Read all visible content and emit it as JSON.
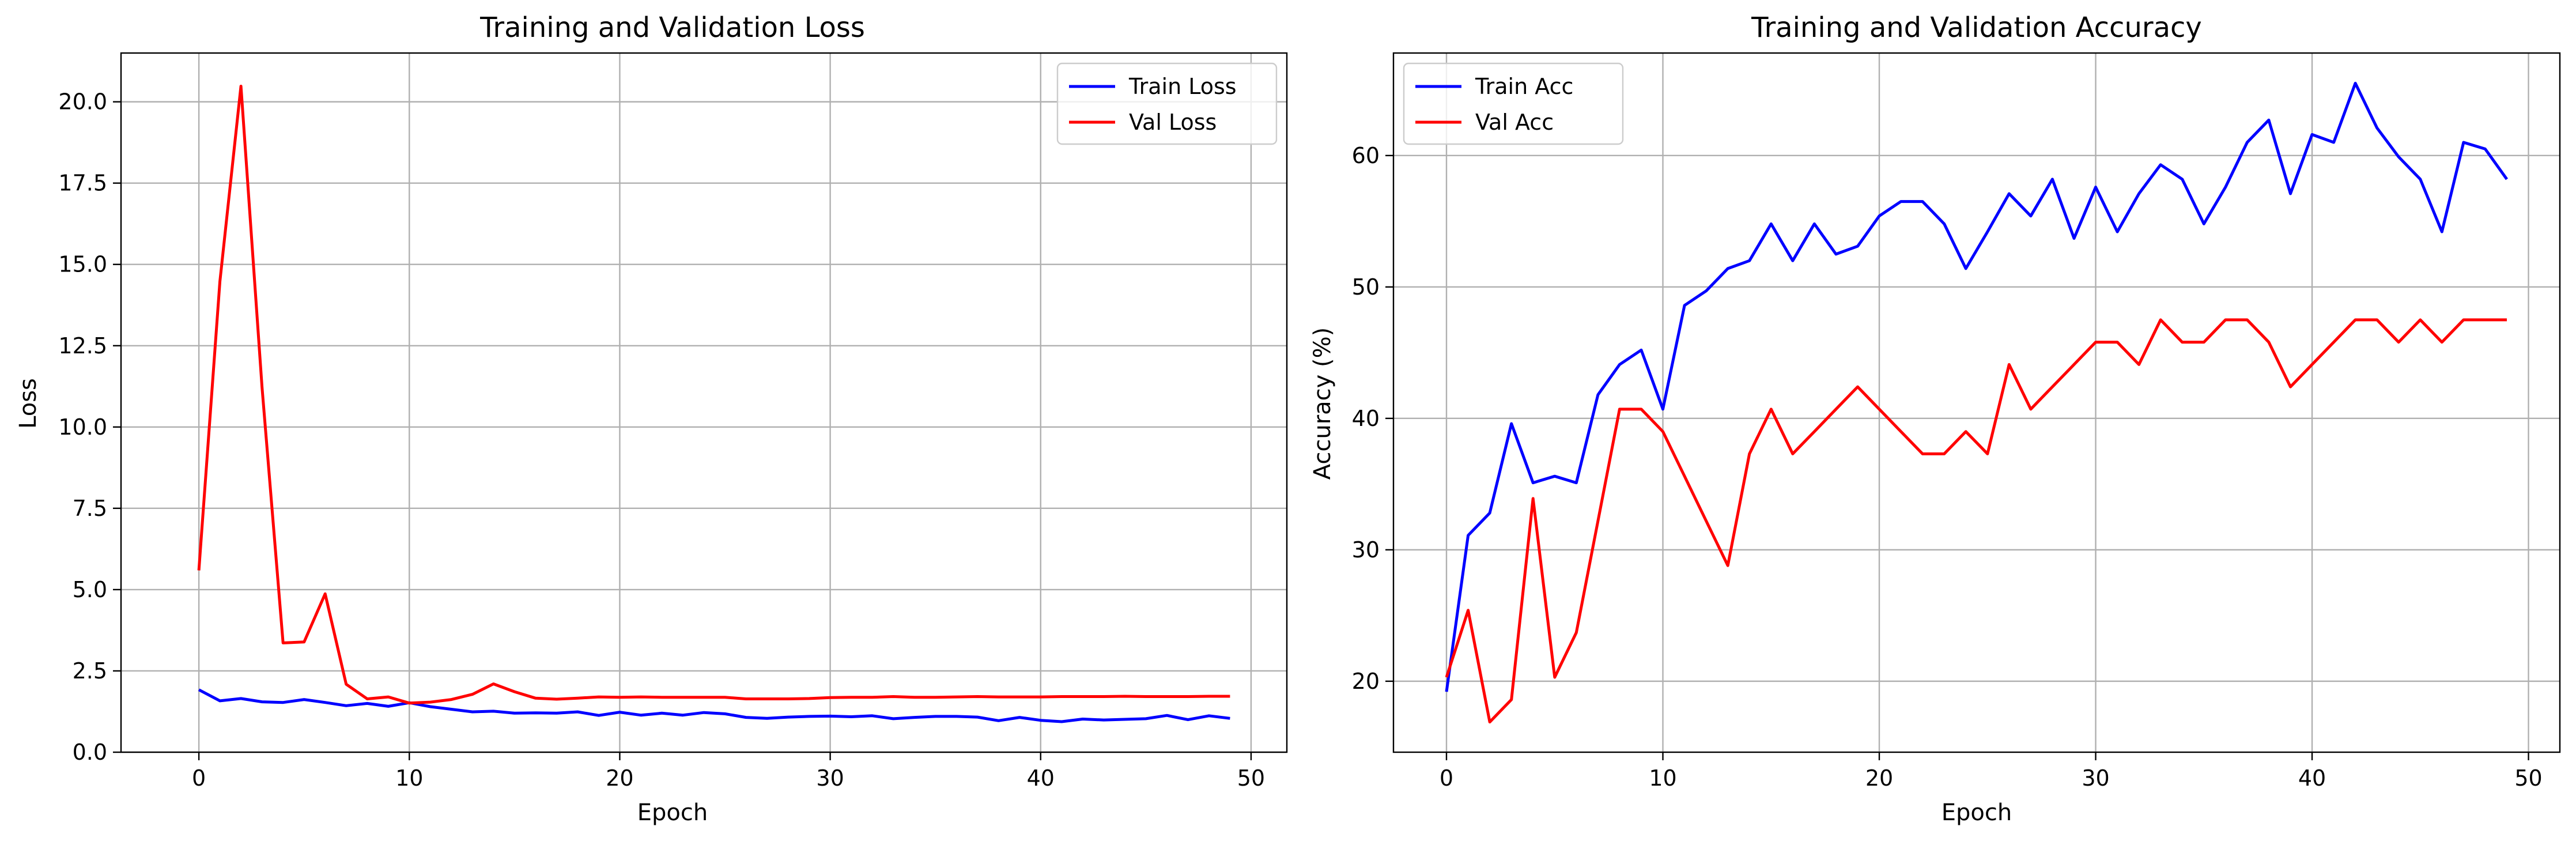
{
  "chart_data": [
    {
      "type": "line",
      "title": "Training and Validation Loss",
      "xlabel": "Epoch",
      "ylabel": "Loss",
      "xlim": [
        -3.7,
        51.7
      ],
      "ylim": [
        0,
        21.5
      ],
      "xticks": [
        0,
        10,
        20,
        30,
        40,
        50
      ],
      "yticks": [
        0.0,
        2.5,
        5.0,
        7.5,
        10.0,
        12.5,
        15.0,
        17.5,
        20.0
      ],
      "ytick_labels": [
        "0.0",
        "2.5",
        "5.0",
        "7.5",
        "10.0",
        "12.5",
        "15.0",
        "17.5",
        "20.0"
      ],
      "grid": true,
      "legend": "upper right",
      "x": [
        0,
        1,
        2,
        3,
        4,
        5,
        6,
        7,
        8,
        9,
        10,
        11,
        12,
        13,
        14,
        15,
        16,
        17,
        18,
        19,
        20,
        21,
        22,
        23,
        24,
        25,
        26,
        27,
        28,
        29,
        30,
        31,
        32,
        33,
        34,
        35,
        36,
        37,
        38,
        39,
        40,
        41,
        42,
        43,
        44,
        45,
        46,
        47,
        48,
        49
      ],
      "series": [
        {
          "name": "Train Loss",
          "color": "#0000ff",
          "values": [
            1.92,
            1.58,
            1.65,
            1.55,
            1.53,
            1.62,
            1.53,
            1.43,
            1.5,
            1.41,
            1.52,
            1.4,
            1.32,
            1.24,
            1.26,
            1.2,
            1.21,
            1.2,
            1.24,
            1.13,
            1.23,
            1.14,
            1.2,
            1.14,
            1.22,
            1.18,
            1.07,
            1.04,
            1.08,
            1.1,
            1.11,
            1.09,
            1.12,
            1.03,
            1.07,
            1.1,
            1.1,
            1.08,
            0.97,
            1.07,
            0.98,
            0.94,
            1.02,
            0.99,
            1.01,
            1.03,
            1.13,
            1.0,
            1.12,
            1.04
          ]
        },
        {
          "name": "Val Loss",
          "color": "#ff0000",
          "values": [
            5.59,
            14.48,
            20.48,
            11.22,
            3.36,
            3.39,
            4.87,
            2.09,
            1.64,
            1.7,
            1.51,
            1.54,
            1.62,
            1.78,
            2.1,
            1.86,
            1.66,
            1.63,
            1.66,
            1.7,
            1.69,
            1.7,
            1.69,
            1.69,
            1.69,
            1.69,
            1.64,
            1.64,
            1.64,
            1.65,
            1.68,
            1.69,
            1.69,
            1.71,
            1.69,
            1.69,
            1.7,
            1.71,
            1.7,
            1.7,
            1.7,
            1.71,
            1.71,
            1.71,
            1.72,
            1.71,
            1.71,
            1.71,
            1.72,
            1.72
          ]
        }
      ]
    },
    {
      "type": "line",
      "title": "Training and Validation Accuracy",
      "xlabel": "Epoch",
      "ylabel": "Accuracy (%)",
      "xlim": [
        -2.45,
        51.45
      ],
      "ylim": [
        14.6,
        67.8
      ],
      "xticks": [
        0,
        10,
        20,
        30,
        40,
        50
      ],
      "yticks": [
        20,
        30,
        40,
        50,
        60
      ],
      "ytick_labels": [
        "20",
        "30",
        "40",
        "50",
        "60"
      ],
      "grid": true,
      "legend": "upper left",
      "x": [
        0,
        1,
        2,
        3,
        4,
        5,
        6,
        7,
        8,
        9,
        10,
        11,
        12,
        13,
        14,
        15,
        16,
        17,
        18,
        19,
        20,
        21,
        22,
        23,
        24,
        25,
        26,
        27,
        28,
        29,
        30,
        31,
        32,
        33,
        34,
        35,
        36,
        37,
        38,
        39,
        40,
        41,
        42,
        43,
        44,
        45,
        46,
        47,
        48,
        49
      ],
      "series": [
        {
          "name": "Train Acc",
          "color": "#0000ff",
          "values": [
            19.2,
            31.1,
            32.8,
            39.6,
            35.1,
            35.6,
            35.1,
            41.8,
            44.1,
            45.2,
            40.7,
            48.6,
            49.7,
            51.4,
            52.0,
            54.8,
            52.0,
            54.8,
            52.5,
            53.1,
            55.4,
            56.5,
            56.5,
            54.8,
            51.4,
            54.2,
            57.1,
            55.4,
            58.2,
            53.7,
            57.6,
            54.2,
            57.1,
            59.3,
            58.2,
            54.8,
            57.6,
            61.0,
            62.7,
            57.1,
            61.6,
            61.0,
            65.5,
            62.1,
            59.9,
            58.2,
            54.2,
            61.0,
            60.5,
            58.2
          ]
        },
        {
          "name": "Val Acc",
          "color": "#ff0000",
          "values": [
            20.3,
            25.4,
            16.9,
            18.6,
            33.9,
            20.3,
            23.7,
            32.2,
            40.7,
            40.7,
            39.0,
            35.6,
            32.2,
            28.8,
            37.3,
            40.7,
            37.3,
            39.0,
            40.7,
            42.4,
            40.7,
            39.0,
            37.3,
            37.3,
            39.0,
            37.3,
            44.1,
            40.7,
            42.4,
            44.1,
            45.8,
            45.8,
            44.1,
            47.5,
            45.8,
            45.8,
            47.5,
            47.5,
            45.8,
            42.4,
            44.1,
            45.8,
            47.5,
            47.5,
            45.8,
            47.5,
            45.8,
            47.5,
            47.5,
            47.5
          ]
        }
      ]
    }
  ]
}
